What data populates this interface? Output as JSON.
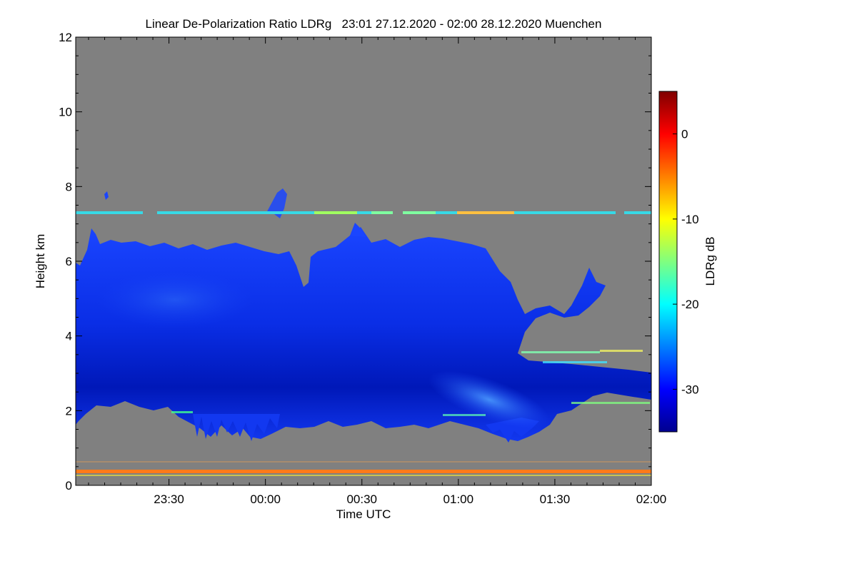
{
  "chart_data": {
    "type": "heatmap",
    "title": "Linear De-Polarization Ratio LDRg   23:01 27.12.2020 - 02:00 28.12.2020 Muenchen",
    "xlabel": "Time UTC",
    "ylabel": "Height km",
    "x_range_minutes": [
      -59,
      120
    ],
    "ylim": [
      0,
      12
    ],
    "x_ticks": [
      {
        "label": "23:30",
        "minutes": -30
      },
      {
        "label": "00:00",
        "minutes": 0
      },
      {
        "label": "00:30",
        "minutes": 30
      },
      {
        "label": "01:00",
        "minutes": 60
      },
      {
        "label": "01:30",
        "minutes": 90
      },
      {
        "label": "02:00",
        "minutes": 120
      }
    ],
    "y_ticks": [
      0,
      2,
      4,
      6,
      8,
      10,
      12
    ],
    "colorbar": {
      "label": "LDRg dB",
      "range": [
        -35,
        5
      ],
      "ticks": [
        0,
        -10,
        -20,
        -30
      ],
      "colormap": "jet"
    },
    "no_data_color": "#808080",
    "features": [
      {
        "name": "cloud layer",
        "ldr_db": -31,
        "height_km": [
          1.5,
          6.5
        ]
      },
      {
        "name": "thin layer",
        "ldr_db": -18,
        "height_km": 7.3
      },
      {
        "name": "ground clutter",
        "ldr_db": -3,
        "height_km": 0.25
      }
    ]
  }
}
